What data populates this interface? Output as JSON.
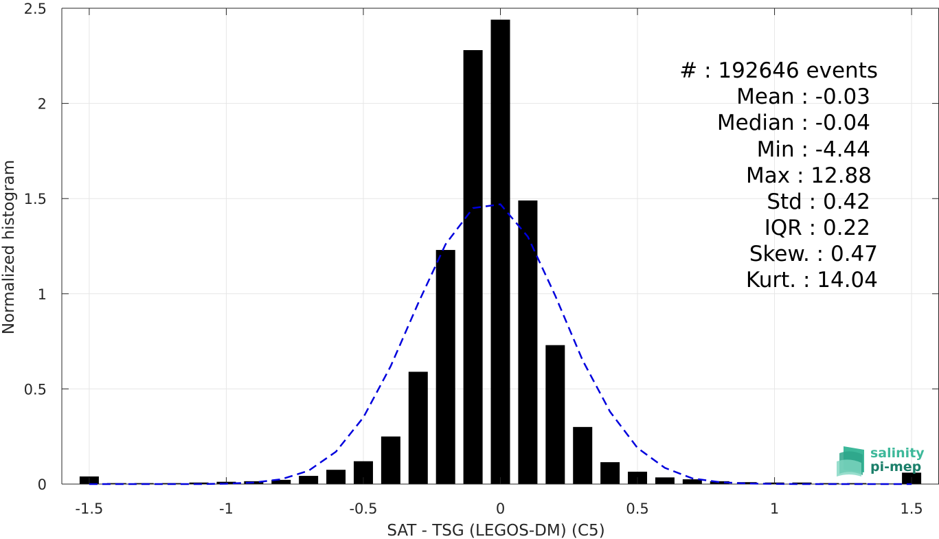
{
  "chart_data": {
    "type": "bar",
    "xlabel": "SAT - TSG (LEGOS-DM) (C5)",
    "ylabel": "Normalized histogram",
    "xlim": [
      -1.6,
      1.6
    ],
    "ylim": [
      0,
      2.5
    ],
    "xticks": [
      -1.5,
      -1,
      -0.5,
      0,
      0.5,
      1,
      1.5
    ],
    "xtick_labels": [
      "-1.5",
      "-1",
      "-0.5",
      "0",
      "0.5",
      "1",
      "1.5"
    ],
    "yticks": [
      0,
      0.5,
      1,
      1.5,
      2,
      2.5
    ],
    "ytick_labels": [
      "0",
      "0.5",
      "1",
      "1.5",
      "2",
      "2.5"
    ],
    "grid": true,
    "bar_color": "#000000",
    "bins": {
      "x": [
        -1.5,
        -1.4,
        -1.3,
        -1.2,
        -1.1,
        -1.0,
        -0.9,
        -0.8,
        -0.7,
        -0.6,
        -0.5,
        -0.4,
        -0.3,
        -0.2,
        -0.1,
        0.0,
        0.1,
        0.2,
        0.3,
        0.4,
        0.5,
        0.6,
        0.7,
        0.8,
        0.9,
        1.0,
        1.1,
        1.2,
        1.3,
        1.4,
        1.5
      ],
      "values": [
        0.04,
        0.005,
        0.005,
        0.005,
        0.008,
        0.012,
        0.015,
        0.022,
        0.043,
        0.075,
        0.12,
        0.25,
        0.59,
        1.23,
        2.28,
        2.44,
        1.49,
        0.73,
        0.3,
        0.115,
        0.065,
        0.035,
        0.025,
        0.015,
        0.01,
        0.008,
        0.008,
        0.005,
        0.005,
        0.003,
        0.06
      ]
    },
    "fit": {
      "type": "gaussian",
      "color": "#0000dd",
      "style": "dashed",
      "x": [
        -1.5,
        -1.4,
        -1.3,
        -1.2,
        -1.1,
        -1.0,
        -0.9,
        -0.8,
        -0.7,
        -0.6,
        -0.5,
        -0.4,
        -0.3,
        -0.2,
        -0.1,
        0.0,
        0.1,
        0.2,
        0.3,
        0.4,
        0.5,
        0.6,
        0.7,
        0.8,
        0.9,
        1.0,
        1.1,
        1.2,
        1.3,
        1.4,
        1.5
      ],
      "y": [
        0.0,
        0.0,
        0.0,
        0.0,
        0.0,
        0.002,
        0.008,
        0.025,
        0.07,
        0.17,
        0.35,
        0.62,
        0.95,
        1.26,
        1.45,
        1.47,
        1.3,
        0.99,
        0.65,
        0.38,
        0.19,
        0.085,
        0.03,
        0.01,
        0.003,
        0.001,
        0.0,
        0.0,
        0.0,
        0.0,
        0.0
      ]
    }
  },
  "stats": [
    {
      "label": "#  : 192646 events"
    },
    {
      "label": "Mean : -0.03"
    },
    {
      "label": "Median : -0.04"
    },
    {
      "label": "Min : -4.44"
    },
    {
      "label": "Max : 12.88"
    },
    {
      "label": "Std : 0.42"
    },
    {
      "label": "IQR : 0.22"
    },
    {
      "label": "Skew. : 0.47"
    },
    {
      "label": "Kurt. : 14.04"
    }
  ],
  "logo": {
    "line1": "salinity",
    "line2": "pi-mep",
    "color1": "#3db89a",
    "color2": "#1b7f6a"
  }
}
